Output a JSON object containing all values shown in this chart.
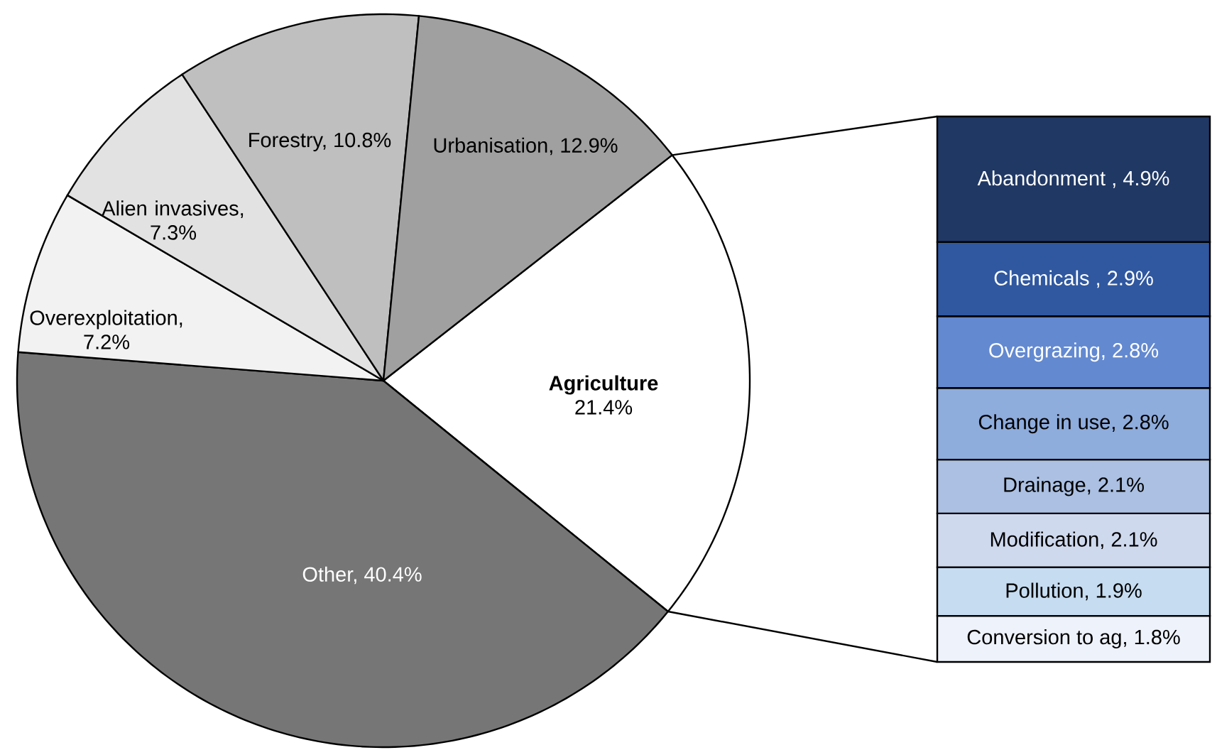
{
  "chart_data": [
    {
      "type": "pie",
      "categories": [
        "**Agriculture** 21.4%",
        "Other, 40.4%",
        "Overexploitation, 7.2%",
        "Alien invasives, 7.3%",
        "Forestry, 10.8%",
        "Urbanisation, 12.9%"
      ],
      "values": [
        21.4,
        40.4,
        7.2,
        7.3,
        10.8,
        12.9
      ],
      "colors": [
        "#ffffff",
        "#767676",
        "#f2f2f2",
        "#e2e2e2",
        "#bfbfbf",
        "#a0a0a0"
      ]
    },
    {
      "type": "bar",
      "stacked": true,
      "categories": [
        null
      ],
      "series": [
        {
          "name": "Conversion to ag,",
          "color": "#eef2fa",
          "values": [
            1.8
          ],
          "value_labels": [
            "1.8%"
          ]
        },
        {
          "name": "Pollution,",
          "color": "#c6dcf0",
          "values": [
            1.9
          ],
          "value_labels": [
            "1.9%"
          ]
        },
        {
          "name": "Modification,",
          "color": "#cfd9ee",
          "values": [
            2.1
          ],
          "value_labels": [
            "2.1%"
          ]
        },
        {
          "name": "Drainage,",
          "color": "#abc0e2",
          "values": [
            2.1
          ],
          "value_labels": [
            "2.1%"
          ]
        },
        {
          "name": "Change in use,",
          "color": "#8eacdc",
          "values": [
            2.8
          ],
          "value_labels": [
            "2.8%"
          ]
        },
        {
          "name": "Overgrazing,",
          "color": "#6389d0",
          "values": [
            2.8
          ],
          "value_labels": [
            "2.8%"
          ]
        },
        {
          "name": "Chemicals ,",
          "color": "#3058a0",
          "values": [
            2.9
          ],
          "value_labels": [
            "2.9%"
          ]
        },
        {
          "name": "Abandonment ,",
          "color": "#203864",
          "values": [
            4.9
          ],
          "value_labels": [
            "4.9%"
          ]
        }
      ]
    }
  ]
}
